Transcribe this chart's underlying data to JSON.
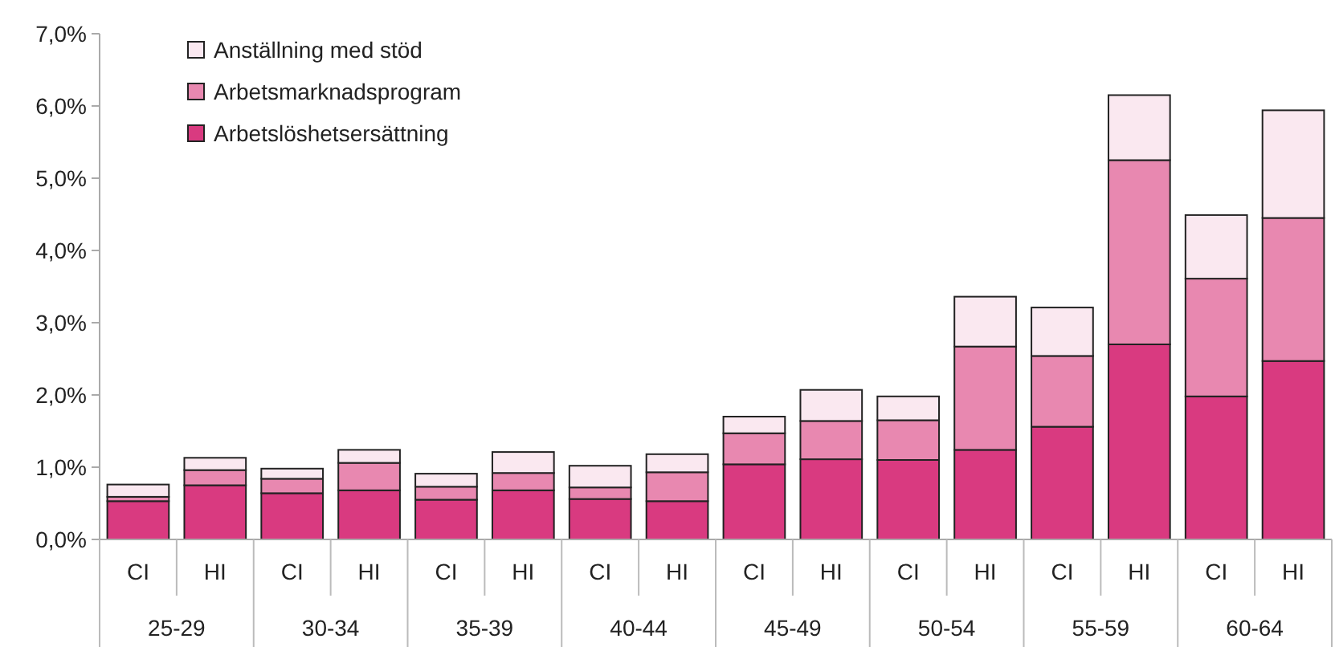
{
  "chart_data": {
    "type": "bar",
    "stacked": true,
    "legend": "top left",
    "grid": false,
    "categories": [
      "CI",
      "HI",
      "CI",
      "HI",
      "CI",
      "HI",
      "CI",
      "HI",
      "CI",
      "HI",
      "CI",
      "HI",
      "CI",
      "HI",
      "CI",
      "HI"
    ],
    "annotations": [
      "25-29",
      "30-34",
      "35-39",
      "40-44",
      "45-49",
      "50-54",
      "55-59",
      "60-64"
    ],
    "ylim": [
      0,
      7
    ],
    "yticks": [
      {
        "value": 0,
        "label": "0,0%"
      },
      {
        "value": 1,
        "label": "1,0%"
      },
      {
        "value": 2,
        "label": "2,0%"
      },
      {
        "value": 3,
        "label": "3,0%"
      },
      {
        "value": 4,
        "label": "4,0%"
      },
      {
        "value": 5,
        "label": "5,0%"
      },
      {
        "value": 6,
        "label": "6,0%"
      },
      {
        "value": 7,
        "label": "7,0%"
      }
    ],
    "series": [
      {
        "name": "Arbetslöshetsersättning",
        "color": "#d93a80",
        "values": [
          0.53,
          0.75,
          0.64,
          0.68,
          0.55,
          0.68,
          0.56,
          0.53,
          1.04,
          1.11,
          1.1,
          1.24,
          1.56,
          2.7,
          1.98,
          2.47
        ]
      },
      {
        "name": "Arbetsmarknadsprogram",
        "color": "#e888b0",
        "values": [
          0.06,
          0.21,
          0.2,
          0.38,
          0.18,
          0.24,
          0.16,
          0.4,
          0.43,
          0.53,
          0.55,
          1.43,
          0.98,
          2.55,
          1.63,
          1.98
        ]
      },
      {
        "name": "Anställning med stöd",
        "color": "#fae8f0",
        "values": [
          0.17,
          0.17,
          0.14,
          0.18,
          0.18,
          0.29,
          0.3,
          0.25,
          0.23,
          0.43,
          0.33,
          0.69,
          0.67,
          0.9,
          0.88,
          1.49
        ]
      }
    ]
  }
}
